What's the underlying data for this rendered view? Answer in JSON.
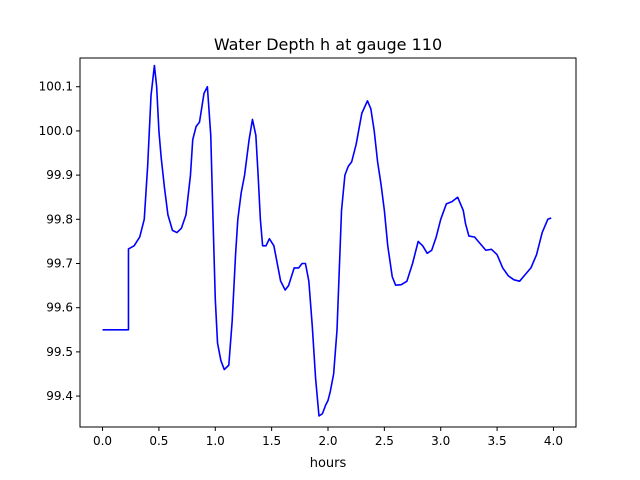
{
  "chart_data": {
    "type": "line",
    "title": "Water Depth h at gauge 110",
    "xlabel": "hours",
    "ylabel": "",
    "xlim": [
      -0.2,
      4.2
    ],
    "ylim": [
      99.33,
      100.165
    ],
    "grid": false,
    "xticks": [
      0.0,
      0.5,
      1.0,
      1.5,
      2.0,
      2.5,
      3.0,
      3.5,
      4.0
    ],
    "xtick_labels": [
      "0.0",
      "0.5",
      "1.0",
      "1.5",
      "2.0",
      "2.5",
      "3.0",
      "3.5",
      "4.0"
    ],
    "yticks": [
      99.4,
      99.5,
      99.6,
      99.7,
      99.8,
      99.9,
      100.0,
      100.1
    ],
    "ytick_labels": [
      "99.4",
      "99.5",
      "99.6",
      "99.7",
      "99.8",
      "99.9",
      "100.0",
      "100.1"
    ],
    "series": [
      {
        "color": "#0000ff",
        "x": [
          0.0,
          0.1,
          0.2,
          0.23,
          0.23,
          0.28,
          0.33,
          0.37,
          0.4,
          0.43,
          0.46,
          0.48,
          0.5,
          0.52,
          0.55,
          0.58,
          0.62,
          0.66,
          0.7,
          0.74,
          0.78,
          0.8,
          0.83,
          0.86,
          0.9,
          0.93,
          0.96,
          0.98,
          1.0,
          1.02,
          1.05,
          1.08,
          1.12,
          1.15,
          1.18,
          1.2,
          1.23,
          1.26,
          1.3,
          1.33,
          1.36,
          1.38,
          1.4,
          1.42,
          1.45,
          1.48,
          1.52,
          1.55,
          1.58,
          1.62,
          1.65,
          1.7,
          1.74,
          1.77,
          1.8,
          1.83,
          1.86,
          1.89,
          1.92,
          1.95,
          1.98,
          2.0,
          2.02,
          2.05,
          2.08,
          2.12,
          2.15,
          2.18,
          2.21,
          2.25,
          2.3,
          2.35,
          2.38,
          2.41,
          2.44,
          2.47,
          2.5,
          2.53,
          2.57,
          2.6,
          2.65,
          2.7,
          2.75,
          2.8,
          2.84,
          2.88,
          2.92,
          2.96,
          3.0,
          3.05,
          3.1,
          3.15,
          3.2,
          3.22,
          3.25,
          3.3,
          3.35,
          3.4,
          3.45,
          3.5,
          3.55,
          3.6,
          3.65,
          3.7,
          3.75,
          3.8,
          3.85,
          3.9,
          3.95,
          3.98
        ],
        "y": [
          99.55,
          99.55,
          99.55,
          99.55,
          99.733,
          99.74,
          99.76,
          99.8,
          99.92,
          100.08,
          100.148,
          100.1,
          100.0,
          99.94,
          99.87,
          99.81,
          99.775,
          99.77,
          99.78,
          99.81,
          99.9,
          99.98,
          100.01,
          100.02,
          100.085,
          100.1,
          99.99,
          99.8,
          99.62,
          99.52,
          99.48,
          99.46,
          99.47,
          99.57,
          99.72,
          99.8,
          99.86,
          99.9,
          99.98,
          100.026,
          99.99,
          99.9,
          99.8,
          99.74,
          99.74,
          99.756,
          99.74,
          99.7,
          99.66,
          99.64,
          99.65,
          99.69,
          99.69,
          99.7,
          99.7,
          99.66,
          99.56,
          99.44,
          99.355,
          99.36,
          99.38,
          99.39,
          99.41,
          99.45,
          99.55,
          99.82,
          99.9,
          99.92,
          99.93,
          99.97,
          100.04,
          100.068,
          100.05,
          100.0,
          99.93,
          99.88,
          99.82,
          99.74,
          99.67,
          99.651,
          99.652,
          99.66,
          99.7,
          99.75,
          99.74,
          99.723,
          99.73,
          99.76,
          99.8,
          99.835,
          99.84,
          99.85,
          99.82,
          99.79,
          99.762,
          99.76,
          99.745,
          99.73,
          99.732,
          99.72,
          99.69,
          99.672,
          99.663,
          99.66,
          99.675,
          99.69,
          99.72,
          99.77,
          99.8,
          99.803
        ]
      }
    ]
  }
}
